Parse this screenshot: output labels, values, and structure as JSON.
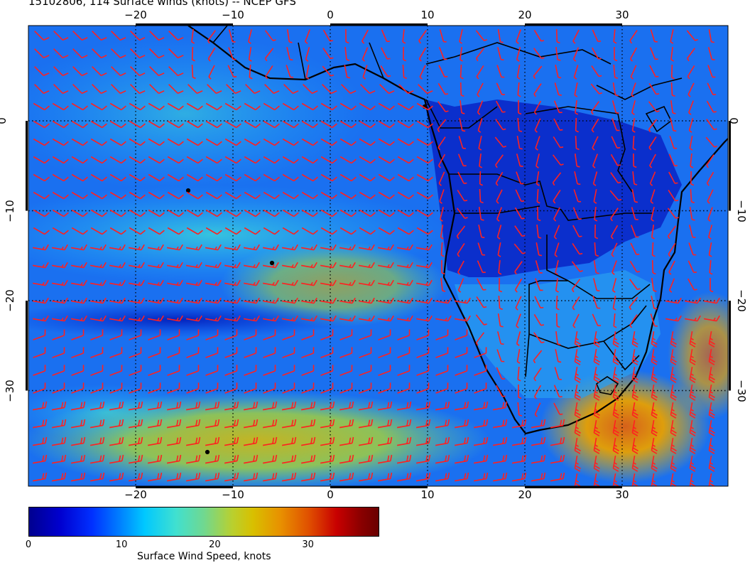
{
  "title": "15102806, 114 Surface winds (knots) -- NCEP GFS",
  "map": {
    "lon_ticks_top": [
      "−20",
      "−10",
      "0",
      "10",
      "20",
      "30"
    ],
    "lon_ticks_bottom": [
      "−20",
      "−10",
      "0",
      "10",
      "20",
      "30"
    ],
    "lat_ticks_left": [
      "0",
      "−10",
      "−20",
      "−30"
    ],
    "lat_ticks_right": [
      "0",
      "−10",
      "−20",
      "−30"
    ],
    "lon_values": [
      -20,
      -10,
      0,
      10,
      20,
      30
    ],
    "lat_values": [
      0,
      -10,
      -20,
      -30
    ],
    "barb_color": "#ff2020",
    "coast_color": "#000000"
  },
  "colorbar": {
    "ticks": [
      "0",
      "10",
      "20",
      "30"
    ],
    "tick_values": [
      0,
      10,
      20,
      30
    ],
    "max_value": 37.5,
    "label": "Surface Wind Speed, knots"
  }
}
